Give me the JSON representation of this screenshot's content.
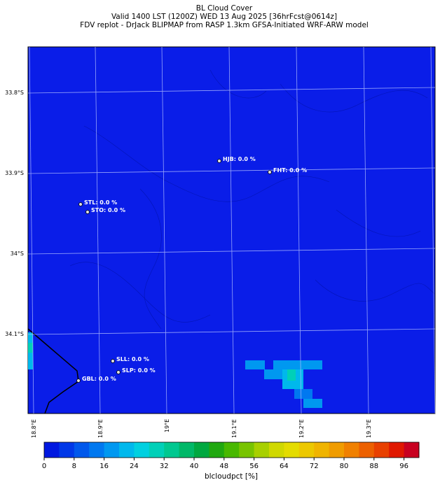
{
  "header": {
    "title": [
      "BL Cloud Cover",
      "Valid 1400 LST (1200Z) WED 13 Aug 2025 [36hrFcst@0614z]",
      "FDV replot - DrJack BLIPMAP from RASP 1.3km GFSA-Initiated WRF-ARW model"
    ]
  },
  "map": {
    "lat_labels": [
      "33.8°S",
      "33.9°S",
      "34°S",
      "34.1°S"
    ],
    "lon_labels": [
      "18.8°E",
      "18.9°E",
      "19°E",
      "19.1°E",
      "19.2°E",
      "19.3°E"
    ],
    "stations": [
      "HJB: 0.0 %",
      "FHT: 0.0 %",
      "STL: 0.0 %",
      "STO: 0.0 %",
      "SLL: 0.0 %",
      "SLP: 0.0 %",
      "GBL: 0.0 %"
    ]
  },
  "colorbar": {
    "range": [
      0,
      100
    ],
    "ticks": [
      0,
      8,
      16,
      24,
      32,
      40,
      48,
      56,
      64,
      72,
      80,
      88,
      96
    ],
    "label": "blcloudpct [%]",
    "colors": [
      "#0018e0",
      "#0038e8",
      "#0058ec",
      "#0078f0",
      "#0098f0",
      "#00b8ec",
      "#00d0e0",
      "#00d0b8",
      "#00c890",
      "#00b868",
      "#00a840",
      "#20a810",
      "#48b800",
      "#78c400",
      "#a8d000",
      "#d0d800",
      "#e4dc00",
      "#ecc800",
      "#f0b400",
      "#f09c00",
      "#f08000",
      "#ec6000",
      "#e84000",
      "#e01800",
      "#c80020"
    ]
  }
}
